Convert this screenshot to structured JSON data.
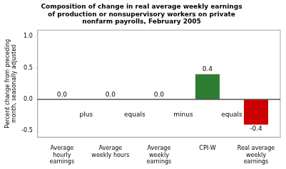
{
  "chart_data": {
    "type": "bar",
    "title": "Composition of change in real average weekly earnings\nof production or nonsupervisory workers on private\nnonfarm payrolls, February 2005",
    "categories": [
      "Average\nhourly\nearnings",
      "Average\nweekly hours",
      "Average\nweekly\nearnings",
      "CPI-W",
      "Real average\nweekly\nearnings"
    ],
    "values": [
      0.0,
      0.0,
      0.0,
      0.4,
      -0.4
    ],
    "value_labels": [
      "0.0",
      "0.0",
      "0.0",
      "0.4",
      "-0.4"
    ],
    "data_labels": true,
    "colors": [
      "#4a7c59",
      "#4a7c59",
      "#4a7c59",
      "#2e7d32",
      "#cc0000"
    ],
    "ylabel": "Percent change from preceding\nmonth, seasonally adjusted",
    "ylim": [
      -0.6,
      1.1
    ],
    "yticks": [
      -0.5,
      {
        "value": 0,
        "label": "0.0"
      },
      0.5,
      {
        "value": 1,
        "label": "1.0"
      }
    ],
    "annotations": [
      "plus",
      "equals",
      "minus",
      "equals"
    ],
    "grid": false
  }
}
